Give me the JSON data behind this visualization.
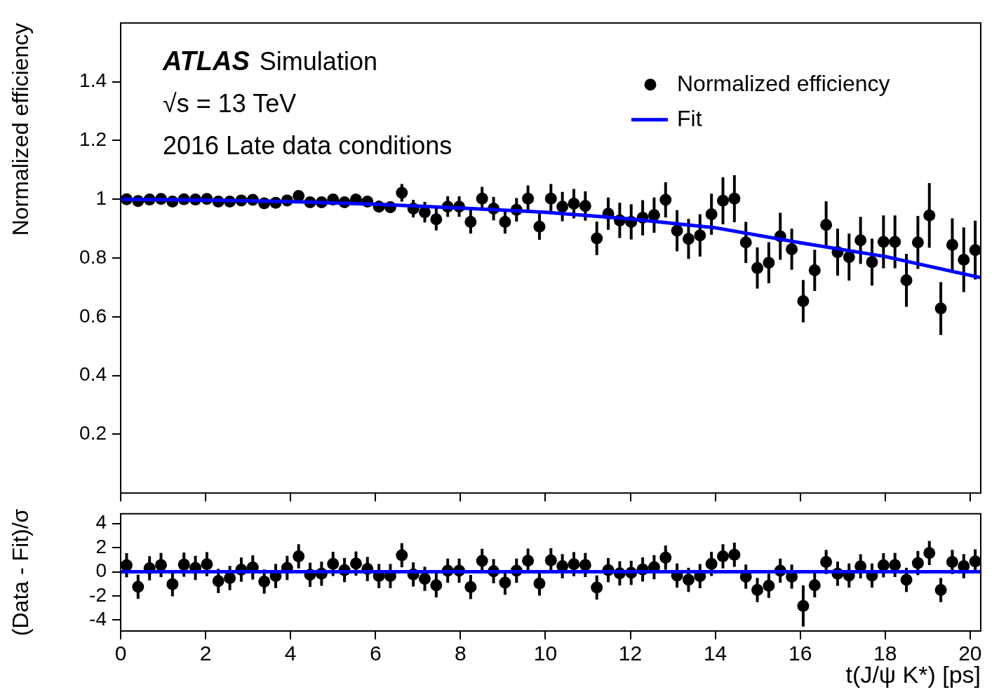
{
  "chart_data": [
    {
      "type": "scatter",
      "ylabel": "Normalized efficiency",
      "annotations": [
        "ATLAS Simulation",
        "√s = 13 TeV",
        "2016 Late data conditions"
      ],
      "xlim": [
        0,
        20.25
      ],
      "xticks": [
        0,
        2,
        4,
        6,
        8,
        10,
        12,
        14,
        16,
        18,
        20
      ],
      "ylim": [
        0,
        1.6
      ],
      "yticks": [
        0.2,
        0.4,
        0.6,
        0.8,
        1,
        1.2,
        1.4
      ],
      "tick_labels": "y",
      "legend": "top right",
      "marker": "circle",
      "series": [
        {
          "name": "Normalized efficiency",
          "type": "scatter",
          "color": "#000000",
          "x": [
            0.14,
            0.41,
            0.68,
            0.95,
            1.22,
            1.49,
            1.76,
            2.03,
            2.3,
            2.57,
            2.84,
            3.11,
            3.38,
            3.65,
            3.92,
            4.19,
            4.46,
            4.73,
            5.0,
            5.27,
            5.54,
            5.81,
            6.08,
            6.35,
            6.62,
            6.89,
            7.16,
            7.43,
            7.7,
            7.97,
            8.24,
            8.51,
            8.78,
            9.05,
            9.32,
            9.59,
            9.86,
            10.13,
            10.4,
            10.67,
            10.94,
            11.21,
            11.48,
            11.75,
            12.02,
            12.29,
            12.56,
            12.83,
            13.1,
            13.37,
            13.64,
            13.91,
            14.18,
            14.45,
            14.72,
            14.99,
            15.26,
            15.53,
            15.8,
            16.07,
            16.34,
            16.61,
            16.88,
            17.15,
            17.42,
            17.69,
            17.96,
            18.23,
            18.5,
            18.77,
            19.04,
            19.31,
            19.58,
            19.85,
            20.12
          ],
          "values": [
            1.0,
            0.994,
            0.999,
            1.001,
            0.992,
            1.0,
            0.999,
            1.001,
            0.992,
            0.992,
            0.996,
            0.998,
            0.986,
            0.988,
            0.996,
            1.011,
            0.99,
            0.99,
            0.999,
            0.99,
            0.999,
            0.992,
            0.975,
            0.973,
            1.022,
            0.968,
            0.956,
            0.932,
            0.975,
            0.975,
            0.923,
            1.002,
            0.968,
            0.923,
            0.964,
            1.002,
            0.907,
            1.002,
            0.975,
            0.985,
            0.977,
            0.867,
            0.951,
            0.928,
            0.923,
            0.937,
            0.946,
            0.998,
            0.893,
            0.865,
            0.877,
            0.949,
            0.995,
            1.002,
            0.853,
            0.766,
            0.784,
            0.874,
            0.83,
            0.653,
            0.758,
            0.913,
            0.82,
            0.803,
            0.86,
            0.786,
            0.855,
            0.855,
            0.724,
            0.853,
            0.945,
            0.628,
            0.845,
            0.794,
            0.827
          ],
          "errors": [
            0.005,
            0.005,
            0.005,
            0.005,
            0.005,
            0.005,
            0.005,
            0.005,
            0.005,
            0.005,
            0.005,
            0.005,
            0.005,
            0.005,
            0.005,
            0.01,
            0.01,
            0.01,
            0.01,
            0.01,
            0.01,
            0.01,
            0.02,
            0.02,
            0.03,
            0.03,
            0.035,
            0.038,
            0.035,
            0.035,
            0.04,
            0.04,
            0.04,
            0.04,
            0.04,
            0.045,
            0.045,
            0.05,
            0.05,
            0.05,
            0.05,
            0.057,
            0.055,
            0.06,
            0.06,
            0.06,
            0.06,
            0.06,
            0.07,
            0.068,
            0.072,
            0.07,
            0.08,
            0.08,
            0.07,
            0.07,
            0.07,
            0.08,
            0.07,
            0.072,
            0.07,
            0.08,
            0.08,
            0.08,
            0.08,
            0.08,
            0.09,
            0.09,
            0.09,
            0.09,
            0.11,
            0.09,
            0.09,
            0.11,
            0.1
          ]
        },
        {
          "name": "Fit",
          "type": "line",
          "color": "#0000ff",
          "marker": "none",
          "x": [
            0,
            2,
            4,
            6,
            8,
            10,
            12,
            14,
            16,
            18,
            20.25
          ],
          "values": [
            1.0,
            0.997,
            0.992,
            0.983,
            0.97,
            0.956,
            0.933,
            0.903,
            0.852,
            0.805,
            0.733
          ]
        }
      ]
    },
    {
      "type": "scatter",
      "ylabel": "(Data - Fit)/σ",
      "xlabel": "t(J/ψ K*) [ps]",
      "xlim": [
        0,
        20.25
      ],
      "xticks": [
        0,
        2,
        4,
        6,
        8,
        10,
        12,
        14,
        16,
        18,
        20
      ],
      "ylim": [
        -4.9,
        4.8
      ],
      "yticks": [
        -4,
        -2,
        0,
        2,
        4
      ],
      "marker": "circle",
      "series": [
        {
          "type": "scatter",
          "color": "#000000",
          "x": [
            0.14,
            0.41,
            0.68,
            0.95,
            1.22,
            1.49,
            1.76,
            2.03,
            2.3,
            2.57,
            2.84,
            3.11,
            3.38,
            3.65,
            3.92,
            4.19,
            4.46,
            4.73,
            5.0,
            5.27,
            5.54,
            5.81,
            6.08,
            6.35,
            6.62,
            6.89,
            7.16,
            7.43,
            7.7,
            7.97,
            8.24,
            8.51,
            8.78,
            9.05,
            9.32,
            9.59,
            9.86,
            10.13,
            10.4,
            10.67,
            10.94,
            11.21,
            11.48,
            11.75,
            12.02,
            12.29,
            12.56,
            12.83,
            13.1,
            13.37,
            13.64,
            13.91,
            14.18,
            14.45,
            14.72,
            14.99,
            15.26,
            15.53,
            15.8,
            16.07,
            16.34,
            16.61,
            16.88,
            17.15,
            17.42,
            17.69,
            17.96,
            18.23,
            18.5,
            18.77,
            19.04,
            19.31,
            19.58,
            19.85,
            20.12
          ],
          "values": [
            0.54,
            -1.24,
            0.29,
            0.56,
            -1.03,
            0.59,
            0.32,
            0.63,
            -0.76,
            -0.52,
            0.18,
            0.36,
            -0.81,
            -0.35,
            0.32,
            1.28,
            -0.25,
            -0.16,
            0.65,
            0.14,
            0.68,
            0.23,
            -0.35,
            -0.35,
            1.37,
            -0.22,
            -0.58,
            -1.12,
            0.09,
            0.09,
            -1.26,
            0.9,
            0.05,
            -0.9,
            0.09,
            0.92,
            -0.97,
            0.95,
            0.46,
            0.63,
            0.56,
            -1.3,
            0.14,
            -0.13,
            -0.09,
            0.19,
            0.38,
            1.17,
            -0.31,
            -0.67,
            -0.36,
            0.65,
            1.28,
            1.41,
            -0.4,
            -1.51,
            -1.16,
            0.09,
            -0.4,
            -2.83,
            -1.12,
            0.81,
            -0.16,
            -0.31,
            0.45,
            -0.31,
            0.54,
            0.56,
            -0.67,
            0.72,
            1.55,
            -1.51,
            0.81,
            0.46,
            0.86
          ],
          "errors": [
            1,
            1,
            1,
            1,
            1,
            1,
            1,
            1,
            1,
            1,
            1,
            1,
            1,
            1,
            1,
            1,
            1,
            1,
            1,
            1,
            1,
            1,
            1,
            1,
            1,
            1,
            1,
            1,
            1,
            1,
            1,
            1,
            1,
            1,
            1,
            1,
            1,
            1,
            1,
            1,
            1,
            1,
            1,
            1,
            1,
            1,
            1,
            1,
            1,
            1,
            1,
            1,
            1,
            1,
            1,
            1,
            1,
            1,
            1,
            1.7,
            1,
            1,
            1,
            1,
            1,
            1,
            1,
            1,
            1,
            1,
            1,
            1,
            1,
            1,
            1
          ]
        },
        {
          "type": "line",
          "color": "#0000ff",
          "marker": "none",
          "x": [
            0,
            20.25
          ],
          "values": [
            0,
            0
          ]
        }
      ]
    }
  ]
}
